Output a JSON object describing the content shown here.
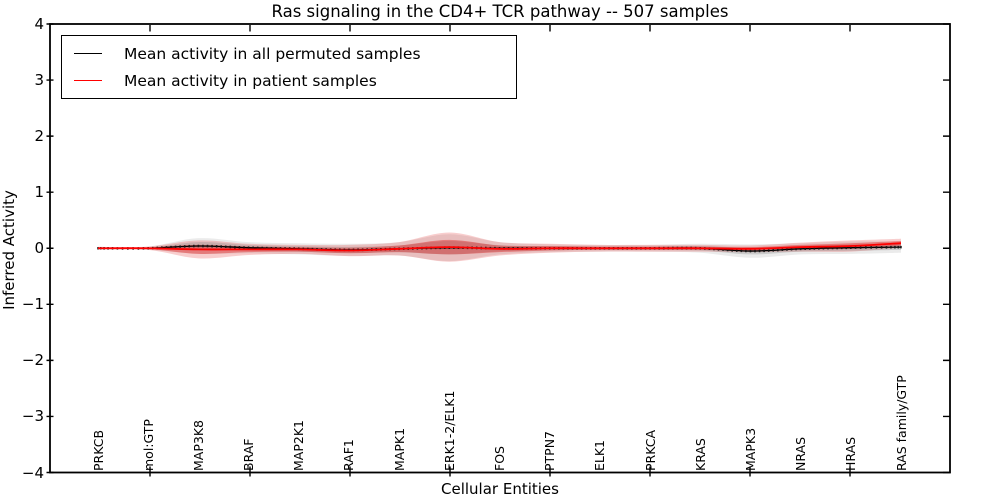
{
  "chart_data": {
    "type": "line",
    "title": "Ras signaling in the CD4+ TCR pathway -- 507 samples",
    "xlabel": "Cellular Entities",
    "ylabel": "Inferred Activity",
    "ylim": [
      -4,
      4
    ],
    "yticks": [
      4,
      3,
      2,
      1,
      0,
      -1,
      -2,
      -3,
      -4
    ],
    "grid": false,
    "legend_position": "upper left",
    "categories": [
      "PRKCB",
      "mol:GTP",
      "MAP3K8",
      "BRAF",
      "MAP2K1",
      "RAF1",
      "MAPK1",
      "ERK1-2/ELK1",
      "FOS",
      "PTPN7",
      "ELK1",
      "PRKCA",
      "KRAS",
      "MAPK3",
      "NRAS",
      "HRAS",
      "RAS family/GTP"
    ],
    "series": [
      {
        "name": "Mean activity in all permuted samples",
        "color": "#000000",
        "band_color": "#808080",
        "mean": [
          0,
          0,
          0.04,
          0.01,
          -0.01,
          -0.03,
          -0.01,
          0.01,
          0,
          0,
          0,
          0,
          0,
          -0.05,
          -0.01,
          0.01,
          0.02
        ],
        "std": [
          0.012,
          0.015,
          0.07,
          0.05,
          0.05,
          0.055,
          0.06,
          0.12,
          0.055,
          0.035,
          0.03,
          0.03,
          0.04,
          0.06,
          0.05,
          0.055,
          0.05
        ]
      },
      {
        "name": "Mean activity in patient samples",
        "color": "#ff0000",
        "band_color": "#dd2020",
        "mean": [
          0,
          0,
          -0.02,
          -0.02,
          -0.02,
          -0.04,
          -0.01,
          0.02,
          -0.01,
          0,
          0,
          0,
          0,
          -0.01,
          0.02,
          0.04,
          0.09
        ],
        "std": [
          0.012,
          0.015,
          0.08,
          0.05,
          0.04,
          0.05,
          0.06,
          0.13,
          0.06,
          0.04,
          0.03,
          0.03,
          0.03,
          0.03,
          0.04,
          0.05,
          0.04
        ]
      }
    ]
  }
}
